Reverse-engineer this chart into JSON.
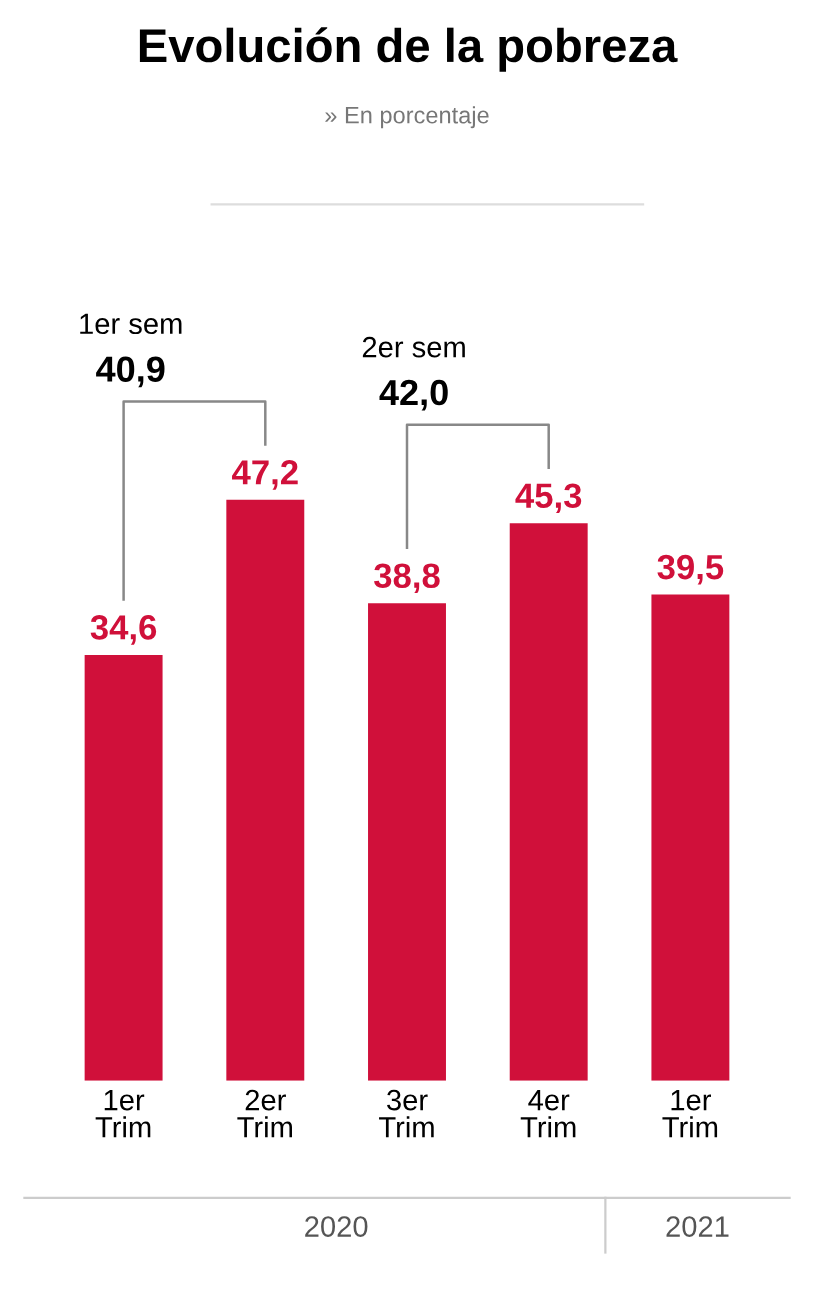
{
  "chart_data": {
    "type": "bar",
    "title": "Evolución de la pobreza",
    "subtitle": "» En porcentaje",
    "categories": [
      "1er\nTrim",
      "2er\nTrim",
      "3er\nTrim",
      "4er\nTrim",
      "1er\nTrim"
    ],
    "values": [
      34.6,
      47.2,
      38.8,
      45.3,
      39.5
    ],
    "value_labels": [
      "34,6",
      "47,2",
      "38,8",
      "45,3",
      "39,5"
    ],
    "color": "#d0103a",
    "annotations": [
      "1er sem",
      "40,9",
      "2er sem",
      "42,0",
      "2020",
      "2021"
    ],
    "grid": false
  }
}
